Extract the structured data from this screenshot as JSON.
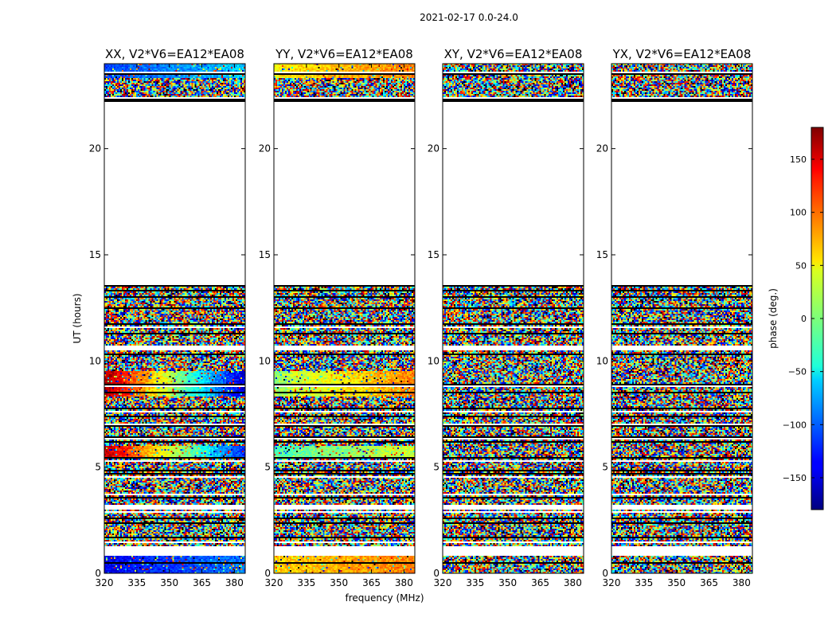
{
  "figure": {
    "title": "2021-02-17 0.0-24.0"
  },
  "chart_data": {
    "type": "heatmap",
    "suptitle": "2021-02-17 0.0-24.0",
    "xlabel": "frequency (MHz)",
    "ylabel": "UT (hours)",
    "xlim": [
      320,
      385
    ],
    "ylim": [
      0,
      24
    ],
    "xticks": [
      320,
      335,
      350,
      365,
      380
    ],
    "yticks": [
      0,
      5,
      10,
      15,
      20
    ],
    "colorbar": {
      "label": "phase (deg.)",
      "range": [
        -180,
        180
      ],
      "ticks": [
        150,
        100,
        50,
        0,
        -50,
        -100,
        -150
      ],
      "tick_labels": [
        "150",
        "100",
        "50",
        "0",
        "−50",
        "−100",
        "−150"
      ],
      "colormap": "jet"
    },
    "panels": [
      {
        "title": "XX, V2*V6=EA12*EA08",
        "coherent_bands": [
          {
            "t0": 23.3,
            "t1": 24.0,
            "phase_low_freq": -110,
            "phase_high_freq": -60
          },
          {
            "t0": 8.3,
            "t1": 9.5,
            "phase_low_freq": 170,
            "phase_high_freq": -150
          },
          {
            "t0": 5.4,
            "t1": 6.0,
            "phase_low_freq": 160,
            "phase_high_freq": -120
          },
          {
            "t0": 0.0,
            "t1": 0.8,
            "phase_low_freq": -140,
            "phase_high_freq": -90
          }
        ]
      },
      {
        "title": "YY, V2*V6=EA12*EA08",
        "coherent_bands": [
          {
            "t0": 23.3,
            "t1": 24.0,
            "phase_low_freq": 50,
            "phase_high_freq": 90
          },
          {
            "t0": 8.3,
            "t1": 9.5,
            "phase_low_freq": 10,
            "phase_high_freq": 90
          },
          {
            "t0": 5.4,
            "t1": 6.0,
            "phase_low_freq": -20,
            "phase_high_freq": 30
          },
          {
            "t0": 0.0,
            "t1": 0.8,
            "phase_low_freq": 60,
            "phase_high_freq": 90
          }
        ]
      },
      {
        "title": "XY, V2*V6=EA12*EA08",
        "coherent_bands": []
      },
      {
        "title": "YX, V2*V6=EA12*EA08",
        "coherent_bands": []
      }
    ],
    "flagged_gaps_hours": [
      [
        13.6,
        22.2
      ],
      [
        22.2,
        22.4
      ],
      [
        23.45,
        23.6
      ],
      [
        0.8,
        1.3
      ],
      [
        10.5,
        10.7
      ],
      [
        4.5,
        4.6
      ],
      [
        3.0,
        3.2
      ]
    ]
  }
}
